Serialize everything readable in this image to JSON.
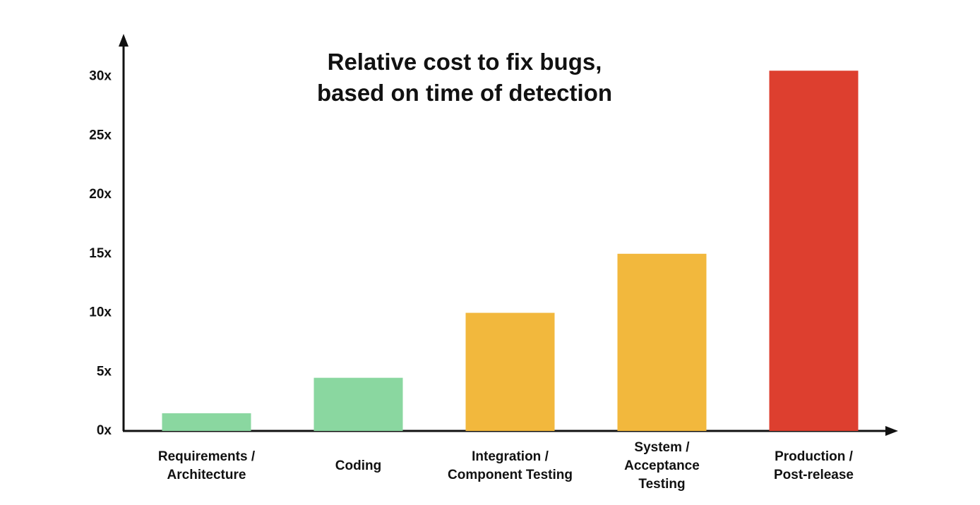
{
  "chart_data": {
    "type": "bar",
    "title": "Relative cost to fix bugs,\nbased on time of detection",
    "categories": [
      "Requirements /\nArchitecture",
      "Coding",
      "Integration /\nComponent Testing",
      "System /\nAcceptance\nTesting",
      "Production /\nPost-release"
    ],
    "values": [
      1.5,
      4.5,
      10,
      15,
      30.5
    ],
    "colors": [
      "#8ad7a0",
      "#8ad7a0",
      "#f2b83d",
      "#f2b83d",
      "#dd3f2f"
    ],
    "ylim": [
      0,
      33.5
    ],
    "yticks": [
      {
        "value": 0,
        "label": "0x"
      },
      {
        "value": 5,
        "label": "5x"
      },
      {
        "value": 10,
        "label": "10x"
      },
      {
        "value": 15,
        "label": "15x"
      },
      {
        "value": 20,
        "label": "20x"
      },
      {
        "value": 25,
        "label": "25x"
      },
      {
        "value": 30,
        "label": "30x"
      }
    ],
    "grid": false
  }
}
